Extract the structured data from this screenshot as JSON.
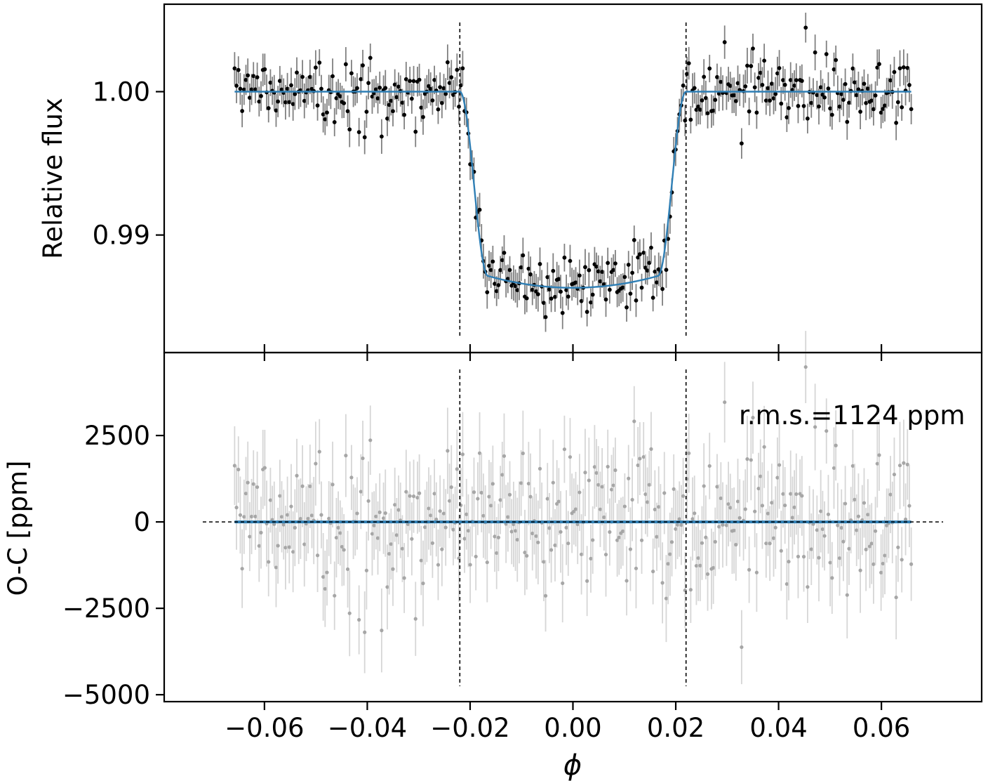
{
  "figure": {
    "xlabel": "ϕ",
    "x_ticks": [
      -0.06,
      -0.04,
      -0.02,
      0.0,
      0.02,
      0.04,
      0.06
    ],
    "x_tick_labels": [
      "−0.06",
      "−0.04",
      "−0.02",
      "0.00",
      "0.02",
      "0.04",
      "0.06"
    ],
    "xlim": [
      -0.0795,
      0.0795
    ],
    "transit_markers_x": [
      -0.022,
      0.022
    ],
    "colors": {
      "model": "#2f7fb5",
      "data": "#000000",
      "errorbar": "#808080",
      "residual_point": "#a6a6a6",
      "residual_errorbar": "#d6d6d6",
      "guide": "#000000"
    }
  },
  "chart_data": [
    {
      "type": "scatter",
      "name": "light-curve",
      "ylabel": "Relative flux",
      "ylim": [
        0.9818,
        1.0061
      ],
      "y_ticks": [
        0.99,
        1.0
      ],
      "y_tick_labels": [
        "0.99",
        "1.00"
      ],
      "grid": false,
      "x_range": [
        -0.0658,
        0.0658
      ],
      "n_points": 360,
      "model": {
        "baseline": 1.0,
        "min_flux": 0.98632,
        "ingress_start": -0.022,
        "ingress_end": -0.0165,
        "egress_start": 0.0165,
        "egress_end": 0.022
      },
      "typical_error": 0.0011,
      "noise_rms": 0.00112,
      "seed": 7
    },
    {
      "type": "scatter",
      "name": "residuals",
      "ylabel": "O-C [ppm]",
      "ylim": [
        -5200,
        4900
      ],
      "y_ticks": [
        -5000,
        -2500,
        0,
        2500
      ],
      "y_tick_labels": [
        "−5000",
        "−2500",
        "0",
        "2500"
      ],
      "grid": false,
      "zero_line_x_range": [
        -0.072,
        0.072
      ],
      "annotation": "r.m.s.=1124 ppm",
      "rms_ppm": 1124
    }
  ]
}
